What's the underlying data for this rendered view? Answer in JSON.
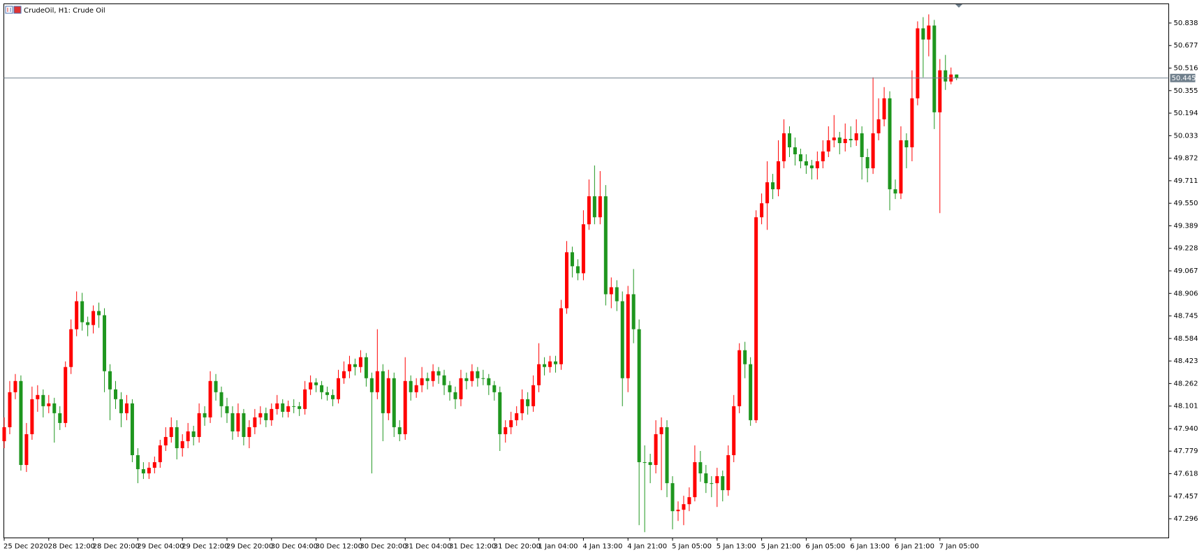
{
  "chart_data": {
    "type": "candlestick",
    "title": "CrudeOil, H1:  Crude Oil",
    "up_color": "#ff0000",
    "down_color": "#1e961e",
    "current_price": 50.445,
    "current_color": "#6f7f8c",
    "ylim": [
      47.159,
      50.975
    ],
    "yticks": [
      47.296,
      47.457,
      47.618,
      47.779,
      {
        "value": 47.94,
        "label": "47.940"
      },
      48.101,
      48.262,
      48.423,
      48.584,
      48.745,
      48.906,
      49.067,
      49.228,
      49.389,
      {
        "value": 49.55,
        "label": "49.550"
      },
      49.711,
      49.872,
      50.033,
      50.194,
      50.355,
      50.516,
      50.677,
      50.838
    ],
    "categories": [
      "25 Dec 2020",
      null,
      null,
      null,
      null,
      null,
      null,
      null,
      "28 Dec 12:00",
      null,
      null,
      null,
      null,
      null,
      null,
      null,
      "28 Dec 20:00",
      null,
      null,
      null,
      null,
      null,
      null,
      null,
      "29 Dec 04:00",
      null,
      null,
      null,
      null,
      null,
      null,
      null,
      "29 Dec 12:00",
      null,
      null,
      null,
      null,
      null,
      null,
      null,
      "29 Dec 20:00",
      null,
      null,
      null,
      null,
      null,
      null,
      null,
      "30 Dec 04:00",
      null,
      null,
      null,
      null,
      null,
      null,
      null,
      "30 Dec 12:00",
      null,
      null,
      null,
      null,
      null,
      null,
      null,
      "30 Dec 20:00",
      null,
      null,
      null,
      null,
      null,
      null,
      null,
      "31 Dec 04:00",
      null,
      null,
      null,
      null,
      null,
      null,
      null,
      "31 Dec 12:00",
      null,
      null,
      null,
      null,
      null,
      null,
      null,
      "31 Dec 20:00",
      null,
      null,
      null,
      null,
      null,
      null,
      null,
      "1 Jan 04:00",
      null,
      null,
      null,
      null,
      null,
      null,
      null,
      "4 Jan 13:00",
      null,
      null,
      null,
      null,
      null,
      null,
      null,
      "4 Jan 21:00",
      null,
      null,
      null,
      null,
      null,
      null,
      null,
      "5 Jan 05:00",
      null,
      null,
      null,
      null,
      null,
      null,
      null,
      "5 Jan 13:00",
      null,
      null,
      null,
      null,
      null,
      null,
      null,
      "5 Jan 21:00",
      null,
      null,
      null,
      null,
      null,
      null,
      null,
      "6 Jan 05:00",
      null,
      null,
      null,
      null,
      null,
      null,
      null,
      "6 Jan 13:00",
      null,
      null,
      null,
      null,
      null,
      null,
      null,
      "6 Jan 21:00",
      null,
      null,
      null,
      null,
      null,
      null,
      null,
      "7 Jan 05:00",
      null,
      null,
      null
    ],
    "candles": [
      [
        47.85,
        48.02,
        47.8,
        47.95
      ],
      [
        47.95,
        48.28,
        47.9,
        48.2
      ],
      [
        48.2,
        48.33,
        48.15,
        48.28
      ],
      [
        48.28,
        48.32,
        47.64,
        47.68
      ],
      [
        47.68,
        47.98,
        47.63,
        47.9
      ],
      [
        47.9,
        48.24,
        47.86,
        48.15
      ],
      [
        48.15,
        48.25,
        48.06,
        48.18
      ],
      [
        48.18,
        48.22,
        48.02,
        48.1
      ],
      [
        48.1,
        48.18,
        48.05,
        48.12
      ],
      [
        48.12,
        48.16,
        47.84,
        48.05
      ],
      [
        48.05,
        48.1,
        47.93,
        47.98
      ],
      [
        47.98,
        48.42,
        47.95,
        48.38
      ],
      [
        48.38,
        48.72,
        48.33,
        48.65
      ],
      [
        48.65,
        48.92,
        48.6,
        48.85
      ],
      [
        48.85,
        48.91,
        48.64,
        48.7
      ],
      [
        48.7,
        48.74,
        48.6,
        48.68
      ],
      [
        48.68,
        48.82,
        48.62,
        48.78
      ],
      [
        48.78,
        48.84,
        48.66,
        48.75
      ],
      [
        48.75,
        48.8,
        48.2,
        48.35
      ],
      [
        48.35,
        48.4,
        48.0,
        48.22
      ],
      [
        48.22,
        48.28,
        48.08,
        48.15
      ],
      [
        48.15,
        48.2,
        47.95,
        48.05
      ],
      [
        48.05,
        48.18,
        48.0,
        48.12
      ],
      [
        48.12,
        48.15,
        47.7,
        47.75
      ],
      [
        47.75,
        47.8,
        47.55,
        47.65
      ],
      [
        47.65,
        47.7,
        47.58,
        47.62
      ],
      [
        47.62,
        47.7,
        47.58,
        47.66
      ],
      [
        47.66,
        47.74,
        47.62,
        47.7
      ],
      [
        47.7,
        47.86,
        47.66,
        47.82
      ],
      [
        47.82,
        47.95,
        47.78,
        47.88
      ],
      [
        47.88,
        48.02,
        47.84,
        47.95
      ],
      [
        47.95,
        48.0,
        47.72,
        47.8
      ],
      [
        47.8,
        47.9,
        47.74,
        47.85
      ],
      [
        47.85,
        47.98,
        47.8,
        47.92
      ],
      [
        47.92,
        47.96,
        47.82,
        47.88
      ],
      [
        47.88,
        48.12,
        47.84,
        48.05
      ],
      [
        48.05,
        48.1,
        47.96,
        48.02
      ],
      [
        48.02,
        48.35,
        47.98,
        48.28
      ],
      [
        48.28,
        48.33,
        48.14,
        48.2
      ],
      [
        48.2,
        48.24,
        48.02,
        48.1
      ],
      [
        48.1,
        48.16,
        47.98,
        48.05
      ],
      [
        48.05,
        48.1,
        47.86,
        47.92
      ],
      [
        47.92,
        48.12,
        47.88,
        48.05
      ],
      [
        48.05,
        48.08,
        47.82,
        47.88
      ],
      [
        47.88,
        48.0,
        47.8,
        47.95
      ],
      [
        47.95,
        48.08,
        47.9,
        48.02
      ],
      [
        48.02,
        48.1,
        47.97,
        48.05
      ],
      [
        48.05,
        48.09,
        47.95,
        48.0
      ],
      [
        48.0,
        48.12,
        47.96,
        48.08
      ],
      [
        48.08,
        48.18,
        48.04,
        48.12
      ],
      [
        48.12,
        48.15,
        48.02,
        48.06
      ],
      [
        48.06,
        48.14,
        48.02,
        48.1
      ],
      [
        48.1,
        48.15,
        48.05,
        48.1
      ],
      [
        48.1,
        48.13,
        48.03,
        48.08
      ],
      [
        48.08,
        48.28,
        48.04,
        48.22
      ],
      [
        48.22,
        48.32,
        48.18,
        48.27
      ],
      [
        48.27,
        48.3,
        48.2,
        48.25
      ],
      [
        48.25,
        48.28,
        48.15,
        48.2
      ],
      [
        48.2,
        48.24,
        48.14,
        48.18
      ],
      [
        48.18,
        48.22,
        48.1,
        48.15
      ],
      [
        48.15,
        48.36,
        48.12,
        48.3
      ],
      [
        48.3,
        48.42,
        48.26,
        48.35
      ],
      [
        48.35,
        48.46,
        48.3,
        48.4
      ],
      [
        48.4,
        48.44,
        48.32,
        48.38
      ],
      [
        48.38,
        48.5,
        48.34,
        48.45
      ],
      [
        48.45,
        48.48,
        48.24,
        48.3
      ],
      [
        48.3,
        48.34,
        47.62,
        48.2
      ],
      [
        48.2,
        48.65,
        48.15,
        48.35
      ],
      [
        48.35,
        48.4,
        47.85,
        48.05
      ],
      [
        48.05,
        48.36,
        48.0,
        48.3
      ],
      [
        48.3,
        48.34,
        47.88,
        47.95
      ],
      [
        47.95,
        48.0,
        47.85,
        47.9
      ],
      [
        47.9,
        48.45,
        47.86,
        48.28
      ],
      [
        48.28,
        48.32,
        48.14,
        48.2
      ],
      [
        48.2,
        48.3,
        48.16,
        48.25
      ],
      [
        48.25,
        48.38,
        48.2,
        48.3
      ],
      [
        48.3,
        48.34,
        48.22,
        48.28
      ],
      [
        48.28,
        48.4,
        48.24,
        48.35
      ],
      [
        48.35,
        48.38,
        48.26,
        48.32
      ],
      [
        48.32,
        48.36,
        48.18,
        48.25
      ],
      [
        48.25,
        48.28,
        48.14,
        48.2
      ],
      [
        48.2,
        48.24,
        48.08,
        48.15
      ],
      [
        48.15,
        48.36,
        48.1,
        48.3
      ],
      [
        48.3,
        48.34,
        48.22,
        48.28
      ],
      [
        48.28,
        48.4,
        48.24,
        48.35
      ],
      [
        48.35,
        48.38,
        48.24,
        48.3
      ],
      [
        48.3,
        48.36,
        48.25,
        48.3
      ],
      [
        48.3,
        48.33,
        48.18,
        48.25
      ],
      [
        48.25,
        48.28,
        48.14,
        48.2
      ],
      [
        48.2,
        48.24,
        47.78,
        47.9
      ],
      [
        47.9,
        48.0,
        47.84,
        47.95
      ],
      [
        47.95,
        48.06,
        47.9,
        48.0
      ],
      [
        48.0,
        48.1,
        47.96,
        48.05
      ],
      [
        48.05,
        48.22,
        48.0,
        48.15
      ],
      [
        48.15,
        48.2,
        48.04,
        48.1
      ],
      [
        48.1,
        48.32,
        48.06,
        48.25
      ],
      [
        48.25,
        48.55,
        48.2,
        48.4
      ],
      [
        48.4,
        48.45,
        48.32,
        48.38
      ],
      [
        48.38,
        48.46,
        48.34,
        48.42
      ],
      [
        48.42,
        48.46,
        48.34,
        48.4
      ],
      [
        48.4,
        48.86,
        48.36,
        48.8
      ],
      [
        48.8,
        49.28,
        48.76,
        49.2
      ],
      [
        49.2,
        49.24,
        49.02,
        49.1
      ],
      [
        49.1,
        49.15,
        49.0,
        49.05
      ],
      [
        49.05,
        49.5,
        49.0,
        49.4
      ],
      [
        49.4,
        49.72,
        49.36,
        49.6
      ],
      [
        49.6,
        49.82,
        49.4,
        49.45
      ],
      [
        49.45,
        49.78,
        49.4,
        49.6
      ],
      [
        49.6,
        49.68,
        48.82,
        48.9
      ],
      [
        48.9,
        49.02,
        48.8,
        48.95
      ],
      [
        48.95,
        49.0,
        48.78,
        48.85
      ],
      [
        48.85,
        48.92,
        48.1,
        48.3
      ],
      [
        48.3,
        48.96,
        48.2,
        48.9
      ],
      [
        48.9,
        49.08,
        48.55,
        48.65
      ],
      [
        48.65,
        48.72,
        47.25,
        47.7
      ],
      [
        47.7,
        47.82,
        47.2,
        47.7
      ],
      [
        47.7,
        47.76,
        47.55,
        47.68
      ],
      [
        47.68,
        48.0,
        47.62,
        47.9
      ],
      [
        47.9,
        48.02,
        47.5,
        47.95
      ],
      [
        47.95,
        48.0,
        47.45,
        47.55
      ],
      [
        47.55,
        47.6,
        47.22,
        47.35
      ],
      [
        47.35,
        47.42,
        47.28,
        47.36
      ],
      [
        47.36,
        47.46,
        47.25,
        47.4
      ],
      [
        47.4,
        47.52,
        47.35,
        47.45
      ],
      [
        47.45,
        47.82,
        47.42,
        47.7
      ],
      [
        47.7,
        47.78,
        47.56,
        47.62
      ],
      [
        47.62,
        47.68,
        47.48,
        47.55
      ],
      [
        47.55,
        47.6,
        47.45,
        47.55
      ],
      [
        47.55,
        47.66,
        47.38,
        47.6
      ],
      [
        47.6,
        47.64,
        47.42,
        47.5
      ],
      [
        47.5,
        47.82,
        47.46,
        47.75
      ],
      [
        47.75,
        48.18,
        47.7,
        48.1
      ],
      [
        48.1,
        48.55,
        48.05,
        48.5
      ],
      [
        48.5,
        48.56,
        48.3,
        48.4
      ],
      [
        48.4,
        48.45,
        47.96,
        48.0
      ],
      [
        48.0,
        49.5,
        47.98,
        49.45
      ],
      [
        49.45,
        49.62,
        49.4,
        49.55
      ],
      [
        49.55,
        49.85,
        49.36,
        49.7
      ],
      [
        49.7,
        49.76,
        49.58,
        49.65
      ],
      [
        49.65,
        50.0,
        49.6,
        49.85
      ],
      [
        49.85,
        50.15,
        49.8,
        50.05
      ],
      [
        50.05,
        50.1,
        49.88,
        49.95
      ],
      [
        49.95,
        50.02,
        49.82,
        49.9
      ],
      [
        49.9,
        49.94,
        49.8,
        49.85
      ],
      [
        49.85,
        49.9,
        49.76,
        49.82
      ],
      [
        49.82,
        49.86,
        49.72,
        49.8
      ],
      [
        49.8,
        49.92,
        49.72,
        49.85
      ],
      [
        49.85,
        50.0,
        49.8,
        49.92
      ],
      [
        49.92,
        50.1,
        49.88,
        50.0
      ],
      [
        50.0,
        50.18,
        49.95,
        50.02
      ],
      [
        50.02,
        50.06,
        49.9,
        49.98
      ],
      [
        49.98,
        50.12,
        49.92,
        50.01
      ],
      [
        50.01,
        50.1,
        49.95,
        50.0
      ],
      [
        50.0,
        50.15,
        49.96,
        50.05
      ],
      [
        50.05,
        50.1,
        49.72,
        49.88
      ],
      [
        49.88,
        49.94,
        49.7,
        49.8
      ],
      [
        49.8,
        50.45,
        49.76,
        50.05
      ],
      [
        50.05,
        50.3,
        50.0,
        50.15
      ],
      [
        50.15,
        50.38,
        50.1,
        50.3
      ],
      [
        50.3,
        50.35,
        49.5,
        49.65
      ],
      [
        49.65,
        49.72,
        49.58,
        49.62
      ],
      [
        49.62,
        50.1,
        49.58,
        50.0
      ],
      [
        50.0,
        50.05,
        49.8,
        49.95
      ],
      [
        49.95,
        50.5,
        49.85,
        50.3
      ],
      [
        50.3,
        50.85,
        50.25,
        50.8
      ],
      [
        50.8,
        50.88,
        50.45,
        50.72
      ],
      [
        50.72,
        50.9,
        50.6,
        50.82
      ],
      [
        50.82,
        50.86,
        50.08,
        50.2
      ],
      [
        50.2,
        50.58,
        49.48,
        50.5
      ],
      [
        50.5,
        50.61,
        50.36,
        50.42
      ],
      [
        50.42,
        50.52,
        50.4,
        50.47
      ],
      [
        50.47,
        50.47,
        50.43,
        50.445
      ]
    ]
  }
}
